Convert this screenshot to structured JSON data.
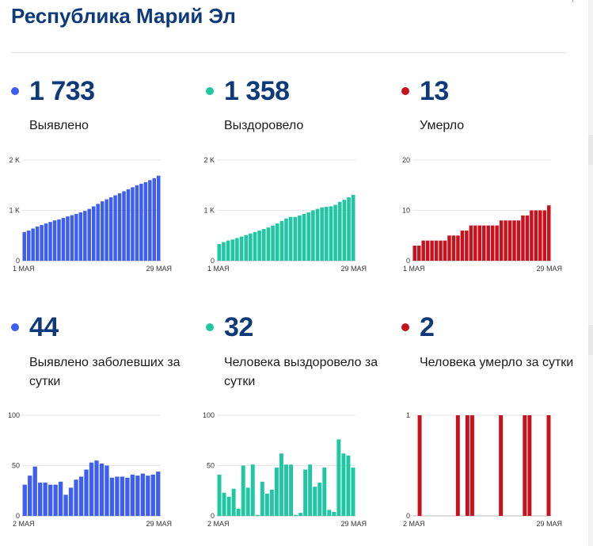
{
  "page": {
    "title": "Республика Марий Эл"
  },
  "colors": {
    "blue": "#3d5ef0",
    "teal": "#1fc7a3",
    "red": "#c8111c",
    "title": "#0d3a7a"
  },
  "cards": [
    {
      "id": "cumulative-cases",
      "value": "1 733",
      "label": "Выявлено",
      "color": "#3d5ef0"
    },
    {
      "id": "cumulative-recovered",
      "value": "1 358",
      "label": "Выздоровело",
      "color": "#1fc7a3"
    },
    {
      "id": "cumulative-deaths",
      "value": "13",
      "label": "Умерло",
      "color": "#c8111c"
    },
    {
      "id": "daily-cases",
      "value": "44",
      "label": "Выявлено заболевших за сутки",
      "color": "#3d5ef0"
    },
    {
      "id": "daily-recovered",
      "value": "32",
      "label": "Человека выздоровело за сутки",
      "color": "#1fc7a3"
    },
    {
      "id": "daily-deaths",
      "value": "2",
      "label": "Человека умерло за сутки",
      "color": "#c8111c"
    }
  ],
  "chart_data": [
    {
      "type": "bar",
      "title": "Выявлено",
      "series": [
        {
          "name": "Выявлено",
          "color": "#3d5ef0",
          "values": [
            570,
            600,
            640,
            680,
            710,
            740,
            770,
            800,
            820,
            850,
            880,
            905,
            930,
            960,
            990,
            1030,
            1080,
            1130,
            1180,
            1220,
            1260,
            1300,
            1340,
            1380,
            1420,
            1460,
            1500,
            1530,
            1560,
            1600,
            1640,
            1690
          ]
        }
      ],
      "ylim": [
        0,
        2000
      ],
      "y_ticks": [
        {
          "value": 0,
          "label": "0"
        },
        {
          "value": 1000,
          "label": "1 K"
        },
        {
          "value": 2000,
          "label": "2 K"
        }
      ],
      "x_labels": {
        "start": "1 МАЯ",
        "end": "29 МАЯ"
      }
    },
    {
      "type": "bar",
      "title": "Выздоровело",
      "series": [
        {
          "name": "Выздоровело",
          "color": "#1fc7a3",
          "values": [
            330,
            370,
            400,
            420,
            450,
            480,
            510,
            540,
            570,
            600,
            630,
            660,
            700,
            740,
            790,
            840,
            870,
            870,
            900,
            930,
            960,
            1000,
            1030,
            1060,
            1070,
            1080,
            1110,
            1170,
            1210,
            1260,
            1310
          ]
        }
      ],
      "ylim": [
        0,
        2000
      ],
      "y_ticks": [
        {
          "value": 0,
          "label": "0"
        },
        {
          "value": 1000,
          "label": "1 K"
        },
        {
          "value": 2000,
          "label": "2 K"
        }
      ],
      "x_labels": {
        "start": "1 МАЯ",
        "end": "29 МАЯ"
      }
    },
    {
      "type": "bar",
      "title": "Умерло",
      "series": [
        {
          "name": "Умерло",
          "color": "#c8111c",
          "values": [
            3,
            3,
            4,
            4,
            4,
            4,
            4,
            4,
            5,
            5,
            5,
            6,
            6,
            7,
            7,
            7,
            7,
            7,
            7,
            7,
            8,
            8,
            8,
            8,
            8,
            9,
            9,
            10,
            10,
            10,
            10,
            11
          ]
        }
      ],
      "ylim": [
        0,
        20
      ],
      "y_ticks": [
        {
          "value": 0,
          "label": "0"
        },
        {
          "value": 10,
          "label": "10"
        },
        {
          "value": 20,
          "label": "20"
        }
      ],
      "x_labels": {
        "start": "1 МАЯ",
        "end": "29 МАЯ"
      }
    },
    {
      "type": "bar",
      "title": "Выявлено заболевших за сутки",
      "series": [
        {
          "name": "Выявлено за сутки",
          "color": "#3d5ef0",
          "values": [
            31,
            40,
            49,
            33,
            33,
            31,
            31,
            34,
            21,
            28,
            36,
            39,
            46,
            53,
            55,
            52,
            50,
            38,
            39,
            39,
            38,
            41,
            40,
            42,
            40,
            41,
            44
          ]
        }
      ],
      "ylim": [
        0,
        100
      ],
      "y_ticks": [
        {
          "value": 0,
          "label": "0"
        },
        {
          "value": 50,
          "label": "50"
        },
        {
          "value": 100,
          "label": "100"
        }
      ],
      "x_labels": {
        "start": "2 МАЯ",
        "end": "29 МАЯ"
      }
    },
    {
      "type": "bar",
      "title": "Человека выздоровело за сутки",
      "series": [
        {
          "name": "Выздоровело за сутки",
          "color": "#1fc7a3",
          "values": [
            41,
            23,
            19,
            27,
            7,
            50,
            28,
            51,
            1,
            34,
            22,
            26,
            48,
            62,
            51,
            51,
            1,
            3,
            46,
            51,
            29,
            33,
            48,
            6,
            4,
            76,
            62,
            60,
            48
          ]
        }
      ],
      "ylim": [
        0,
        100
      ],
      "y_ticks": [
        {
          "value": 0,
          "label": "0"
        },
        {
          "value": 50,
          "label": "50"
        },
        {
          "value": 100,
          "label": "100"
        }
      ],
      "x_labels": {
        "start": "2 МАЯ",
        "end": "29 МАЯ"
      }
    },
    {
      "type": "bar",
      "title": "Человека умерло за сутки",
      "series": [
        {
          "name": "Умерло за сутки",
          "color": "#c8111c",
          "values": [
            0,
            1,
            0,
            0,
            0,
            0,
            0,
            0,
            0,
            1,
            0,
            1,
            1,
            0,
            0,
            0,
            0,
            0,
            1,
            0,
            0,
            0,
            0,
            1,
            1,
            0,
            0,
            0,
            1
          ]
        }
      ],
      "ylim": [
        0,
        1
      ],
      "y_ticks": [
        {
          "value": 0,
          "label": "0"
        },
        {
          "value": 1,
          "label": "1"
        }
      ],
      "x_labels": {
        "start": "2 МАЯ",
        "end": "29 МАЯ"
      }
    }
  ]
}
